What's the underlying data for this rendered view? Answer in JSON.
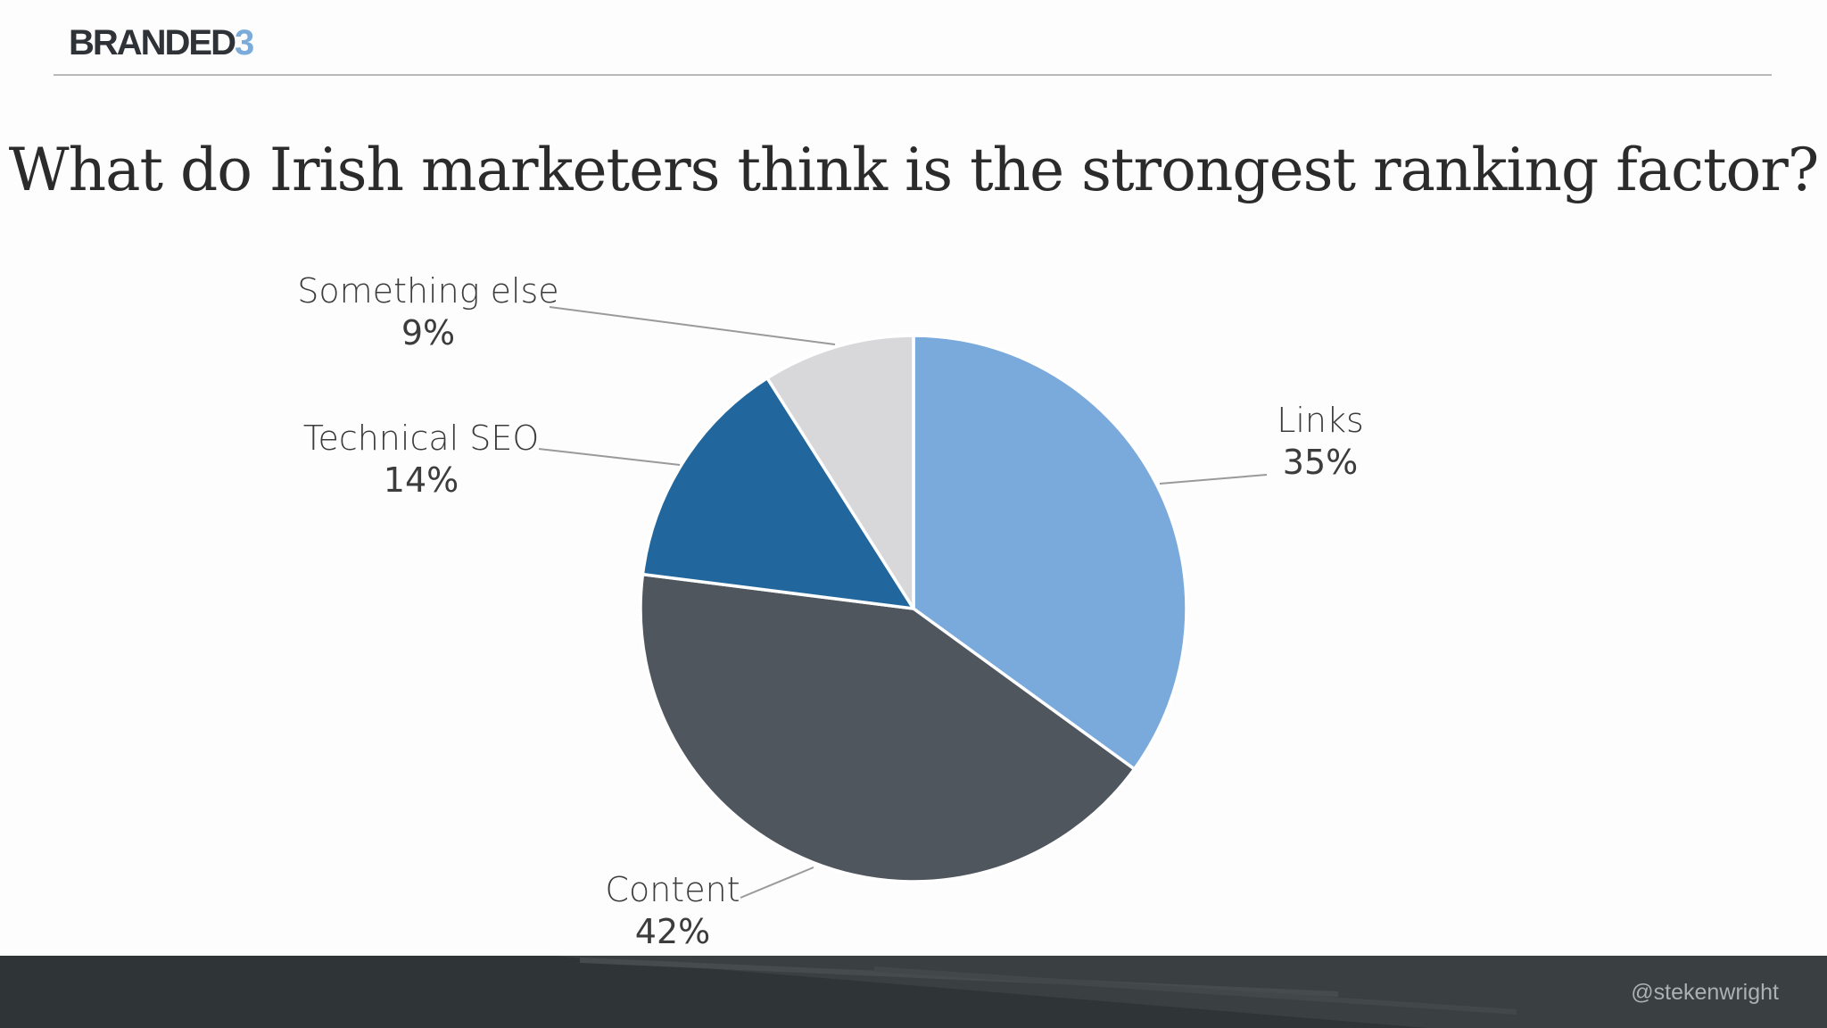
{
  "brand": {
    "text": "BRANDED",
    "num": "3"
  },
  "title": "What do Irish marketers think is the strongest ranking factor?",
  "chart_data": {
    "type": "pie",
    "title": "What do Irish marketers think is the strongest ranking factor?",
    "categories": [
      "Links",
      "Content",
      "Technical SEO",
      "Something else"
    ],
    "values": [
      35,
      42,
      14,
      9
    ],
    "labels": [
      "35%",
      "42%",
      "14%",
      "9%"
    ],
    "colors": [
      "#7aaadc",
      "#50565e",
      "#21679d",
      "#d8d7da"
    ],
    "legend": "none"
  },
  "footer": {
    "handle": "@stekenwright"
  }
}
